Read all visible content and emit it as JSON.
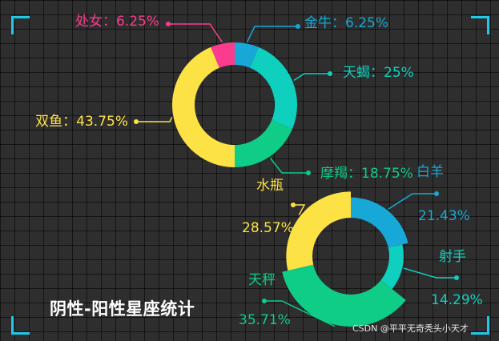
{
  "title": "阴性-阳性星座统计",
  "watermark": "CSDN @平平无奇秃头小天才",
  "colors": {
    "frame": "#20c8ea"
  },
  "chart_data": [
    {
      "type": "pie",
      "variant": "donut",
      "slices": [
        {
          "name": "金牛",
          "value": 6.25,
          "label": "金牛：6.25%",
          "color": "#17a8d8"
        },
        {
          "name": "天蝎",
          "value": 25,
          "label": "天蝎：25%",
          "color": "#0fd0bf"
        },
        {
          "name": "摩羯",
          "value": 18.75,
          "label": "摩羯：18.75%",
          "color": "#0fcc86"
        },
        {
          "name": "双鱼",
          "value": 43.75,
          "label": "双鱼：43.75%",
          "color": "#fde245"
        },
        {
          "name": "处女",
          "value": 6.25,
          "label": "处女：6.25%",
          "color": "#fb3c8e"
        }
      ]
    },
    {
      "type": "pie",
      "variant": "rose-donut",
      "slices": [
        {
          "name": "白羊",
          "value": 21.43,
          "label_name": "白羊",
          "label_value": "21.43%",
          "color": "#17a8d8"
        },
        {
          "name": "射手",
          "value": 14.29,
          "label_name": "射手",
          "label_value": "14.29%",
          "color": "#0fd0bf"
        },
        {
          "name": "天秤",
          "value": 35.71,
          "label_name": "天秤",
          "label_value": "35.71%",
          "color": "#0fcc86"
        },
        {
          "name": "水瓶",
          "value": 28.57,
          "label_name": "水瓶",
          "label_value": "28.57%",
          "color": "#fde245"
        }
      ]
    }
  ]
}
